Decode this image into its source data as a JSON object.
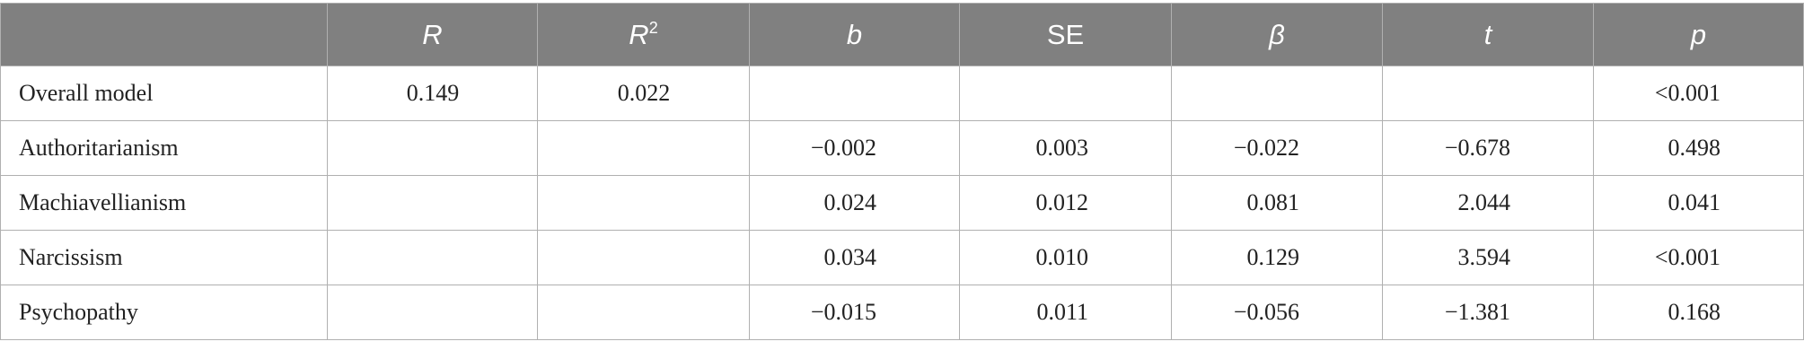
{
  "table": {
    "header": [
      "R",
      {
        "base": "R",
        "sup": "2"
      },
      "b",
      "SE",
      "β",
      "t",
      "p"
    ],
    "rows": [
      {
        "label": "Overall model",
        "cells": [
          "0.149",
          "0.022",
          null,
          null,
          null,
          null,
          "<0.001"
        ]
      },
      {
        "label": "Authoritarianism",
        "cells": [
          null,
          null,
          "−0.002",
          "0.003",
          "−0.022",
          "−0.678",
          "0.498"
        ]
      },
      {
        "label": "Machiavellianism",
        "cells": [
          null,
          null,
          "0.024",
          "0.012",
          "0.081",
          "2.044",
          "0.041"
        ]
      },
      {
        "label": "Narcissism",
        "cells": [
          null,
          null,
          "0.034",
          "0.010",
          "0.129",
          "3.594",
          "<0.001"
        ]
      },
      {
        "label": "Psychopathy",
        "cells": [
          null,
          null,
          "−0.015",
          "0.011",
          "−0.056",
          "−1.381",
          "0.168"
        ]
      }
    ]
  }
}
